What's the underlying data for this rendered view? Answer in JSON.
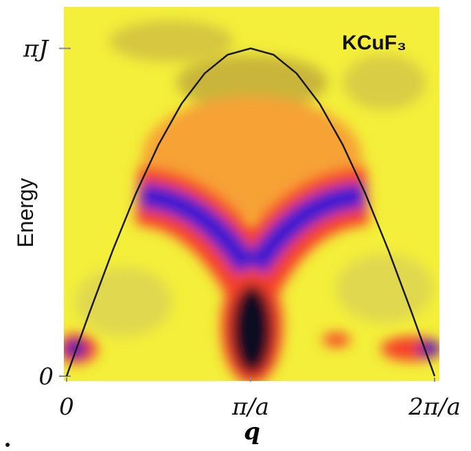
{
  "chart_data": {
    "type": "line",
    "xlabel": "q",
    "ylabel": "Energy",
    "annotation": "KCuF₃",
    "x": [
      0,
      0.393,
      0.785,
      1.178,
      1.571,
      1.963,
      2.356,
      2.749,
      3.142,
      3.534,
      3.927,
      4.32,
      4.712,
      5.105,
      5.498,
      5.89,
      6.283
    ],
    "series": [
      {
        "color": "#1a1a1a",
        "values": [
          0,
          0.613,
          1.202,
          1.745,
          2.221,
          2.612,
          2.902,
          3.081,
          3.142,
          3.081,
          2.902,
          2.612,
          2.221,
          1.745,
          1.202,
          0.613,
          0
        ]
      }
    ],
    "xlim": [
      0,
      6.283
    ],
    "ylim": [
      0,
      3.54
    ],
    "xticks": [
      0,
      {
        "value": 3.142,
        "label": "π/a"
      },
      {
        "value": 6.283,
        "label": "2π/a"
      }
    ],
    "yticks": [
      0,
      {
        "value": 3.142,
        "label": "πJ"
      }
    ]
  }
}
